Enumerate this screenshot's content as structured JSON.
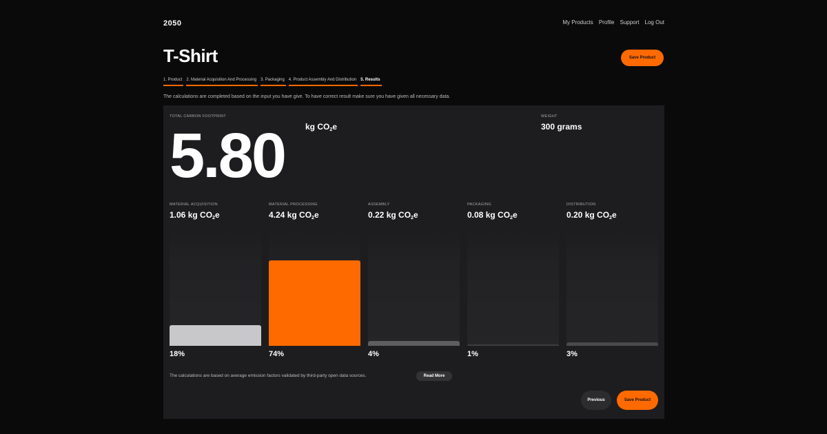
{
  "header": {
    "logo": "2050",
    "nav": [
      "My Products",
      "Profile",
      "Support",
      "Log Out"
    ]
  },
  "page": {
    "title": "T-Shirt",
    "save_label": "Save Product"
  },
  "steps": [
    {
      "label": "1. Product",
      "active": false
    },
    {
      "label": "2. Material Acquisition And Processing",
      "active": false
    },
    {
      "label": "3. Packaging",
      "active": false
    },
    {
      "label": "4. Product Assembly And Distribution",
      "active": false
    },
    {
      "label": "5. Results",
      "active": true
    }
  ],
  "subtitle": "The calculations are completed based on the input you have give. To have correct result make sure you have given all necessary data.",
  "results": {
    "total_label": "TOTAL CARBON FOOTPRINT",
    "total_value": "5.80",
    "unit_prefix": "kg CO",
    "unit_sub": "2",
    "unit_suffix": "e",
    "weight_label": "WEIGHT",
    "weight_value": "300 grams"
  },
  "categories": [
    {
      "label": "MATERIAL ACQUISITION",
      "value": "1.06 kg CO",
      "pct": "18%",
      "level": 0.18,
      "color": "#c8c8ca"
    },
    {
      "label": "MATERIAL PROCESSING",
      "value": "4.24 kg CO",
      "pct": "74%",
      "level": 0.74,
      "color": "#ff6a00"
    },
    {
      "label": "ASSEMBLY",
      "value": "0.22 kg CO",
      "pct": "4%",
      "level": 0.04,
      "color": "#5e5e60"
    },
    {
      "label": "PACKAGING",
      "value": "0.08 kg CO",
      "pct": "1%",
      "level": 0.01,
      "color": "#3e3e40"
    },
    {
      "label": "DISTRIBUTION",
      "value": "0.20 kg CO",
      "pct": "3%",
      "level": 0.03,
      "color": "#4a4a4c"
    }
  ],
  "footer": {
    "note": "The calculations are based on average emission factors validated by third-party open data sources.",
    "read_more": "Read More",
    "previous": "Previous",
    "save": "Save Product"
  }
}
